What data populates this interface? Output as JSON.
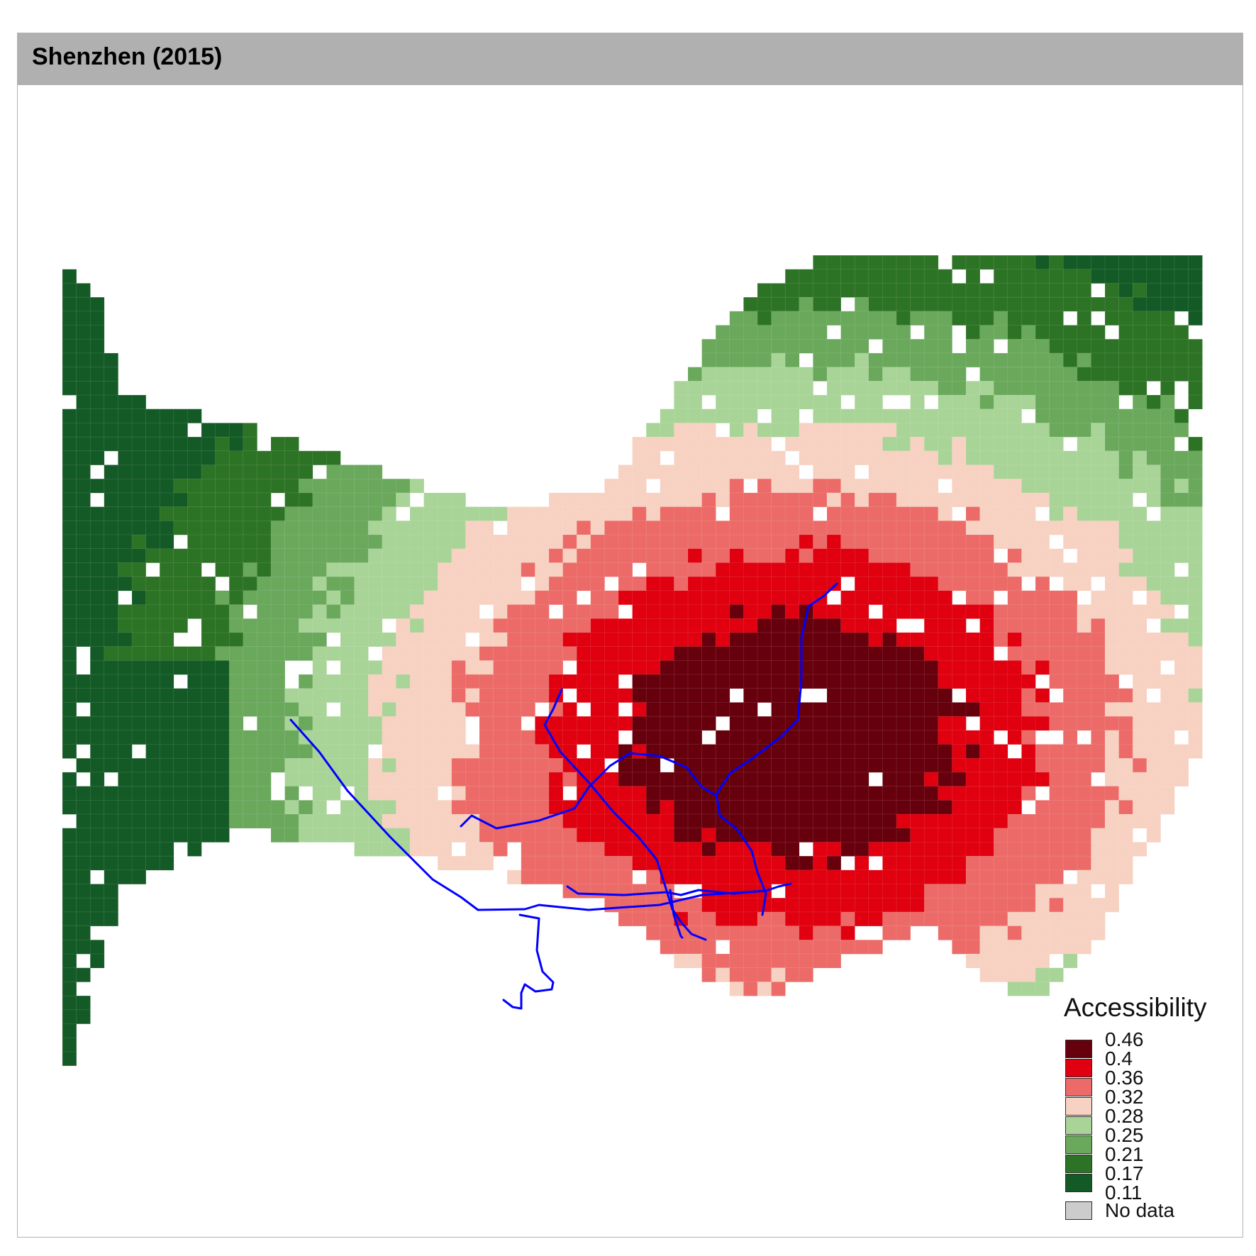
{
  "panel": {
    "title": "Shenzhen (2015)"
  },
  "legend": {
    "title": "Accessibility",
    "breaks": [
      "0.46",
      "0.4",
      "0.36",
      "0.32",
      "0.28",
      "0.25",
      "0.21",
      "0.17",
      "0.11"
    ],
    "colors": [
      "#67000d",
      "#e0000f",
      "#ec6b68",
      "#f7d1c1",
      "#a8d497",
      "#6aa85c",
      "#2d7325",
      "#145a26"
    ],
    "no_data_label": "No data",
    "no_data_color": "#cccccc"
  },
  "map": {
    "route_color": "#0000ff",
    "grid_line_color": "#ffffff"
  }
}
